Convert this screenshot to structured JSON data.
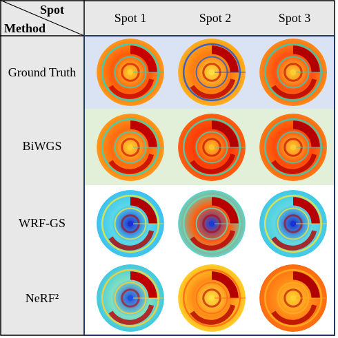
{
  "table": {
    "corner_top": "Spot",
    "corner_bottom": "Method",
    "columns": [
      "Spot 1",
      "Spot 2",
      "Spot 3"
    ],
    "rows": [
      {
        "label": "Ground Truth",
        "bg": "#dae3f3"
      },
      {
        "label": "BiWGS",
        "bg": "#e2efd9"
      },
      {
        "label": "WRF-GS",
        "bg": "#ffffff"
      },
      {
        "label": "NeRF²",
        "bg": "#ffffff"
      }
    ]
  },
  "patterns": [
    [
      {
        "outer": "#ff9a1c",
        "mid": "#ff5a0a",
        "ring": "#c80000",
        "center": "#ffd030",
        "band": "#22d8c8"
      },
      {
        "outer": "#ffb020",
        "mid": "#ff7a10",
        "ring": "#b80000",
        "center": "#ffe040",
        "band": "#1a5ad8"
      },
      {
        "outer": "#ff8a18",
        "mid": "#ff5010",
        "ring": "#b00000",
        "center": "#ffd030",
        "band": "#28d0c0"
      }
    ],
    [
      {
        "outer": "#ff9a1c",
        "mid": "#ff6a10",
        "ring": "#c00000",
        "center": "#ffd030",
        "band": "#30d8c0"
      },
      {
        "outer": "#ff6010",
        "mid": "#ff3c08",
        "ring": "#b00000",
        "center": "#ffc028",
        "band": "#38d8b8"
      },
      {
        "outer": "#ff7a14",
        "mid": "#ff4a0a",
        "ring": "#b40000",
        "center": "#ffcc30",
        "band": "#30d0c0"
      }
    ],
    [
      {
        "outer": "#3cc0f0",
        "mid": "#5ad8e8",
        "ring": "#b00000",
        "center": "#1a30d0",
        "band": "#e8e840"
      },
      {
        "outer": "#58d8d0",
        "mid": "#ff6010",
        "ring": "#b80000",
        "center": "#1a3ad8",
        "band": "#60e0c0"
      },
      {
        "outer": "#40c8e8",
        "mid": "#60d8e0",
        "ring": "#b80000",
        "center": "#1a30d0",
        "band": "#f0e040"
      }
    ],
    [
      {
        "outer": "#40c8e0",
        "mid": "#80e0c0",
        "ring": "#c00000",
        "center": "#2050e0",
        "band": "#ffd030"
      },
      {
        "outer": "#ffd028",
        "mid": "#ff8a18",
        "ring": "#b40000",
        "center": "#ffe040",
        "band": "#ff6a10"
      },
      {
        "outer": "#ff6a10",
        "mid": "#ff8a18",
        "ring": "#b00000",
        "center": "#ffd030",
        "band": "#ffb020"
      }
    ]
  ]
}
